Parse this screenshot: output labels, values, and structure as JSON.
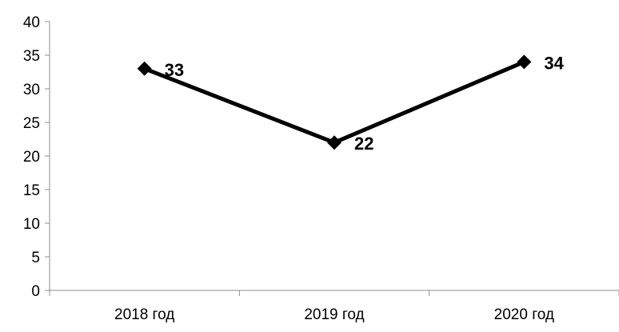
{
  "chart_data": {
    "type": "line",
    "title": "",
    "xlabel": "",
    "ylabel": "",
    "categories": [
      "2018 год",
      "2019 год",
      "2020 год"
    ],
    "series": [
      {
        "values": [
          33,
          22,
          34
        ],
        "marker": "diamond",
        "color": "#000000",
        "data_labels": [
          "33",
          "22",
          "34"
        ]
      }
    ],
    "ylim": [
      0,
      40
    ],
    "yticks": [
      0,
      5,
      10,
      15,
      20,
      25,
      30,
      35,
      40
    ],
    "ytick_labels": [
      "0",
      "5",
      "10",
      "15",
      "20",
      "25",
      "30",
      "35",
      "40"
    ],
    "grid": false,
    "legend": "none",
    "colors": {
      "line": "#000000",
      "axis": "#8c8c8c",
      "text": "#000000"
    }
  }
}
